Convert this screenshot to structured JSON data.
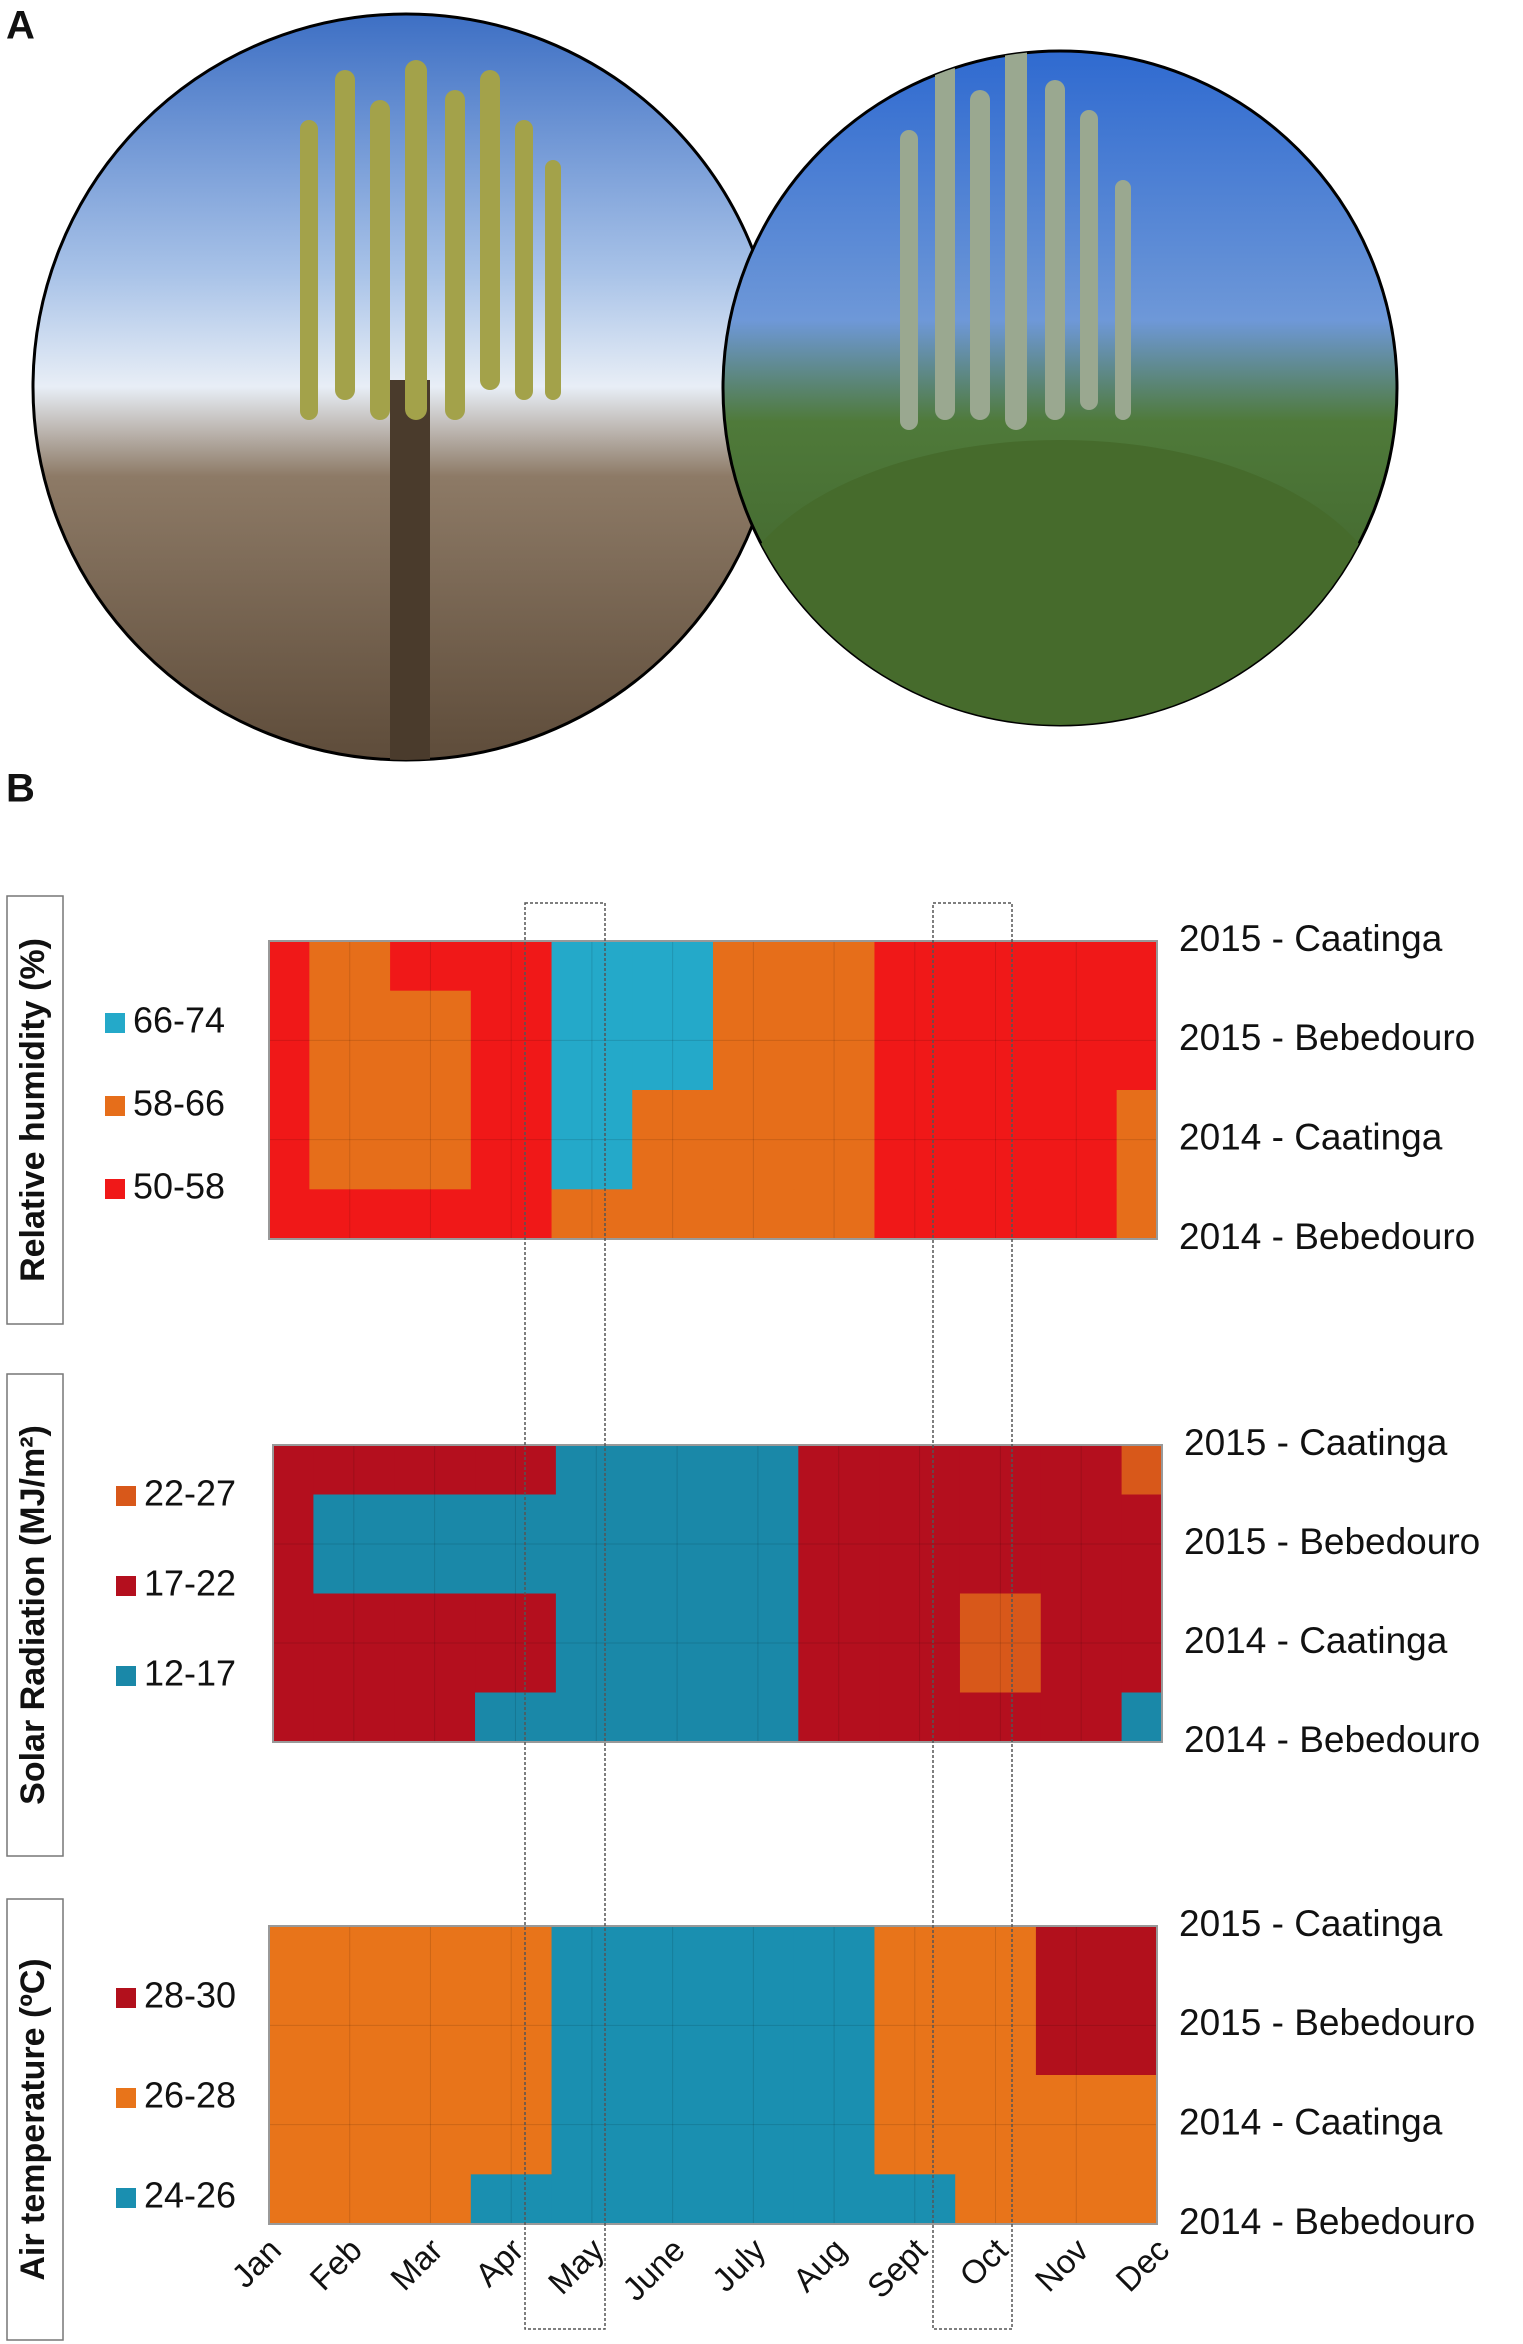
{
  "figure": {
    "panel_a": "A",
    "panel_b": "B"
  },
  "chart_data": [
    {
      "type": "surface",
      "y_title": "Relative humidity (%)",
      "bands": [
        {
          "label": "66-74",
          "min": 66,
          "max": 74,
          "color": "#24a9c9"
        },
        {
          "label": "58-66",
          "min": 58,
          "max": 66,
          "color": "#e66e1a"
        },
        {
          "label": "50-58",
          "min": 50,
          "max": 58,
          "color": "#f01818"
        }
      ],
      "series": [
        {
          "name": "2015 - Caatinga",
          "values": [
            52,
            60,
            55,
            57,
            70,
            68,
            62,
            58,
            54,
            53,
            54,
            54
          ]
        },
        {
          "name": "2015 - Bebedouro",
          "values": [
            52,
            63,
            58,
            57,
            70,
            68,
            64,
            62,
            55,
            53,
            54,
            55
          ]
        },
        {
          "name": "2014 - Caatinga",
          "values": [
            53,
            61,
            60,
            57,
            70,
            63,
            62,
            61,
            54,
            53,
            52,
            60
          ]
        },
        {
          "name": "2014 - Bebedouro",
          "values": [
            52,
            55,
            53,
            57,
            63,
            62,
            62,
            61,
            54,
            53,
            52,
            59
          ]
        }
      ]
    },
    {
      "type": "surface",
      "y_title": "Solar Radiation (MJ/m²)",
      "bands": [
        {
          "label": "22-27",
          "min": 22,
          "max": 27,
          "color": "#d8581a"
        },
        {
          "label": "17-22",
          "min": 17,
          "max": 22,
          "color": "#b40f1e"
        },
        {
          "label": "12-17",
          "min": 12,
          "max": 17,
          "color": "#1a88a8"
        }
      ],
      "series": [
        {
          "name": "2015 - Caatinga",
          "values": [
            19,
            19,
            19,
            19,
            15,
            14,
            14,
            19,
            20,
            20,
            21,
            22
          ]
        },
        {
          "name": "2015 - Bebedouro",
          "values": [
            18,
            16,
            16,
            16,
            14,
            14,
            14,
            17,
            20,
            20,
            20,
            20
          ]
        },
        {
          "name": "2014 - Caatinga",
          "values": [
            19,
            19,
            19,
            18,
            13,
            14,
            14,
            17,
            20,
            22,
            19,
            19
          ]
        },
        {
          "name": "2014 - Bebedouro",
          "values": [
            18,
            18,
            17,
            15,
            15,
            15,
            15,
            17,
            18,
            18,
            18,
            16
          ]
        }
      ]
    },
    {
      "type": "surface",
      "y_title": "Air temperature (ºC)",
      "bands": [
        {
          "label": "28-30",
          "min": 28,
          "max": 30,
          "color": "#b2101c"
        },
        {
          "label": "26-28",
          "min": 26,
          "max": 28,
          "color": "#e8741a"
        },
        {
          "label": "24-26",
          "min": 24,
          "max": 26,
          "color": "#1a8fb0"
        }
      ],
      "categories": [
        "Jan",
        "Feb",
        "Mar",
        "Apr",
        "May",
        "June",
        "July",
        "Aug",
        "Sept",
        "Oct",
        "Nov",
        "Dec"
      ],
      "series": [
        {
          "name": "2015 - Caatinga",
          "values": [
            27,
            27,
            27,
            27,
            25,
            25,
            25,
            25,
            26,
            26,
            29,
            29
          ]
        },
        {
          "name": "2015 - Bebedouro",
          "values": [
            27,
            27,
            27,
            27,
            24.5,
            25,
            25,
            25,
            26,
            26,
            29,
            29
          ]
        },
        {
          "name": "2014 - Caatinga",
          "values": [
            27,
            27,
            27,
            26.5,
            25,
            25,
            25,
            25,
            26,
            27,
            27,
            27
          ]
        },
        {
          "name": "2014 - Bebedouro",
          "values": [
            26,
            26,
            26,
            25,
            25,
            25,
            25,
            25,
            25,
            26,
            27,
            26
          ]
        }
      ]
    }
  ]
}
